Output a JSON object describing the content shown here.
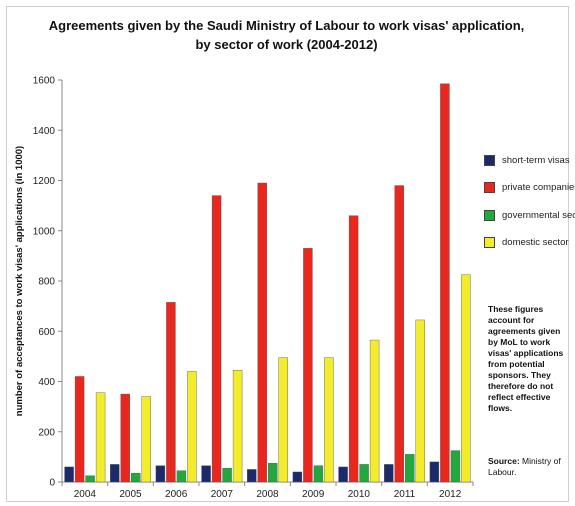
{
  "title_lines": [
    "Agreements given by the Saudi Ministry of Labour to work visas' application,",
    "by sector of work (2004-2012)"
  ],
  "note": "These figures account for agreements given by MoL to work visas' applications from potential sponsors. They therefore do not reflect effective flows.",
  "source": {
    "label": "Source:",
    "text": "Ministry of Labour."
  },
  "chart_data": {
    "type": "bar",
    "title": "Agreements given by the Saudi Ministry of Labour to work visas' application, by sector of work (2004-2012)",
    "xlabel": "",
    "ylabel": "number of acceptances to work visas' applications (in 1000)",
    "ylim": [
      0,
      1600
    ],
    "yticks": [
      0,
      200,
      400,
      600,
      800,
      1000,
      1200,
      1400,
      1600
    ],
    "grid": false,
    "legend_position": "right",
    "categories": [
      "2004",
      "2005",
      "2006",
      "2007",
      "2008",
      "2009",
      "2010",
      "2011",
      "2012"
    ],
    "series": [
      {
        "name": "short-term visas",
        "color": "#1c2a6b",
        "values": [
          60,
          70,
          65,
          65,
          50,
          40,
          60,
          70,
          80
        ]
      },
      {
        "name": "private companies",
        "color": "#e8281f",
        "values": [
          420,
          350,
          715,
          1140,
          1190,
          930,
          1060,
          1180,
          1585
        ]
      },
      {
        "name": "governmental sector",
        "color": "#22a83c",
        "values": [
          25,
          35,
          45,
          55,
          75,
          65,
          70,
          110,
          125
        ]
      },
      {
        "name": "domestic sector",
        "color": "#f3ec2c",
        "values": [
          355,
          340,
          440,
          445,
          495,
          495,
          565,
          645,
          825
        ]
      }
    ]
  }
}
